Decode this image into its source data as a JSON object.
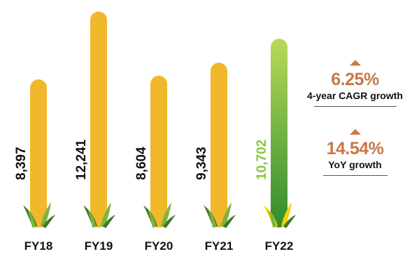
{
  "chart_data": {
    "type": "bar",
    "categories": [
      "FY18",
      "FY19",
      "FY20",
      "FY21",
      "FY22"
    ],
    "values": [
      8397,
      12241,
      8604,
      9343,
      10702
    ],
    "value_labels": [
      "8,397",
      "12,241",
      "8,604",
      "9,343",
      "10,702"
    ],
    "ylim": [
      0,
      12500
    ],
    "grid": false,
    "highlight_index": 4,
    "colors": {
      "bar": "#f0b82a",
      "bar_highlight_top": "#b9da5a",
      "bar_highlight_bottom": "#2e8b2e",
      "highlight_label": "#8cc63f",
      "label": "#111111",
      "leaf_dark": "#3e7a23",
      "leaf_light": "#7cb342",
      "leaf_yellow": "#f5d000"
    },
    "icons": [
      "corn-leaves-icon"
    ]
  },
  "metrics": [
    {
      "value": "6.25%",
      "label": "4-year CAGR growth",
      "icon": "up-arrow-icon"
    },
    {
      "value": "14.54%",
      "label": "YoY growth",
      "icon": "up-arrow-icon"
    }
  ]
}
